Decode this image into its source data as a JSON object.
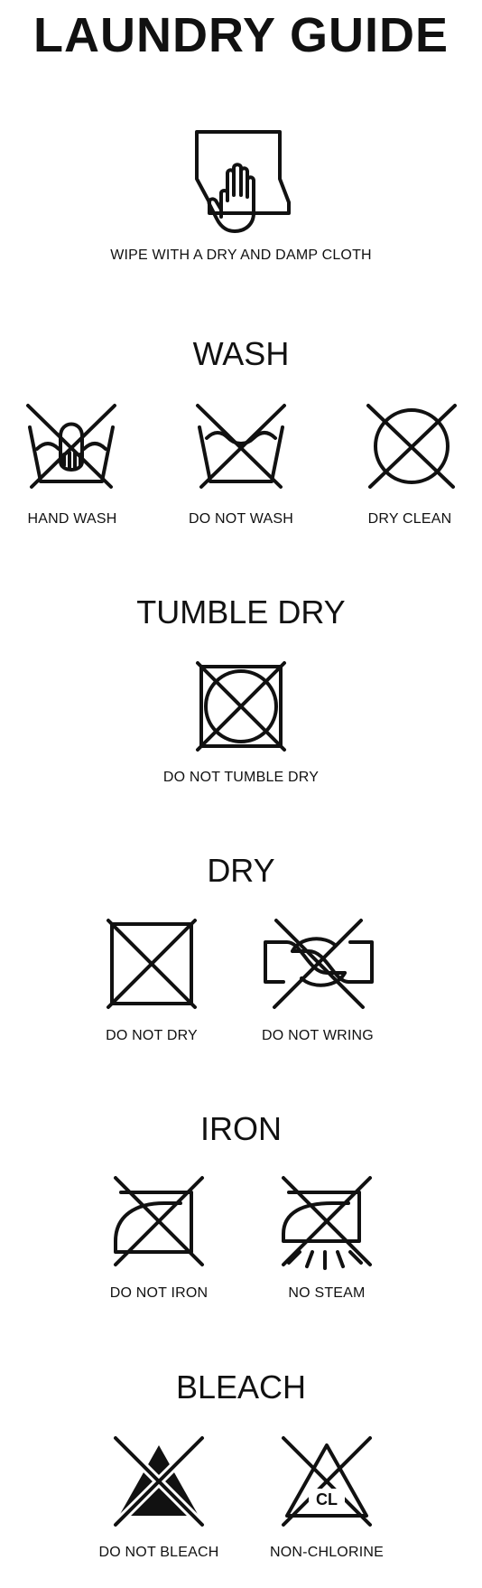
{
  "page": {
    "title": "LAUNDRY GUIDE"
  },
  "intro": {
    "label": "WIPE WITH A DRY AND DAMP CLOTH"
  },
  "wash": {
    "title": "WASH",
    "items": [
      {
        "label": "HAND WASH",
        "icon": "hand-wash-icon"
      },
      {
        "label": "DO NOT WASH",
        "icon": "do-not-wash-icon"
      },
      {
        "label": "DRY CLEAN",
        "icon": "dry-clean-icon"
      }
    ]
  },
  "tumble": {
    "title": "TUMBLE DRY",
    "items": [
      {
        "label": "DO NOT TUMBLE DRY",
        "icon": "do-not-tumble-dry-icon"
      }
    ]
  },
  "dry": {
    "title": "DRY",
    "items": [
      {
        "label": "DO NOT DRY",
        "icon": "do-not-dry-icon"
      },
      {
        "label": "DO NOT WRING",
        "icon": "do-not-wring-icon"
      }
    ]
  },
  "iron": {
    "title": "IRON",
    "items": [
      {
        "label": "DO NOT IRON",
        "icon": "do-not-iron-icon"
      },
      {
        "label": "NO STEAM",
        "icon": "no-steam-icon"
      }
    ]
  },
  "bleach": {
    "title": "BLEACH",
    "items": [
      {
        "label": "DO NOT BLEACH",
        "icon": "do-not-bleach-icon"
      },
      {
        "label": "NON-CHLORINE",
        "icon": "non-chlorine-bleach-icon",
        "badge": "CL"
      }
    ]
  }
}
